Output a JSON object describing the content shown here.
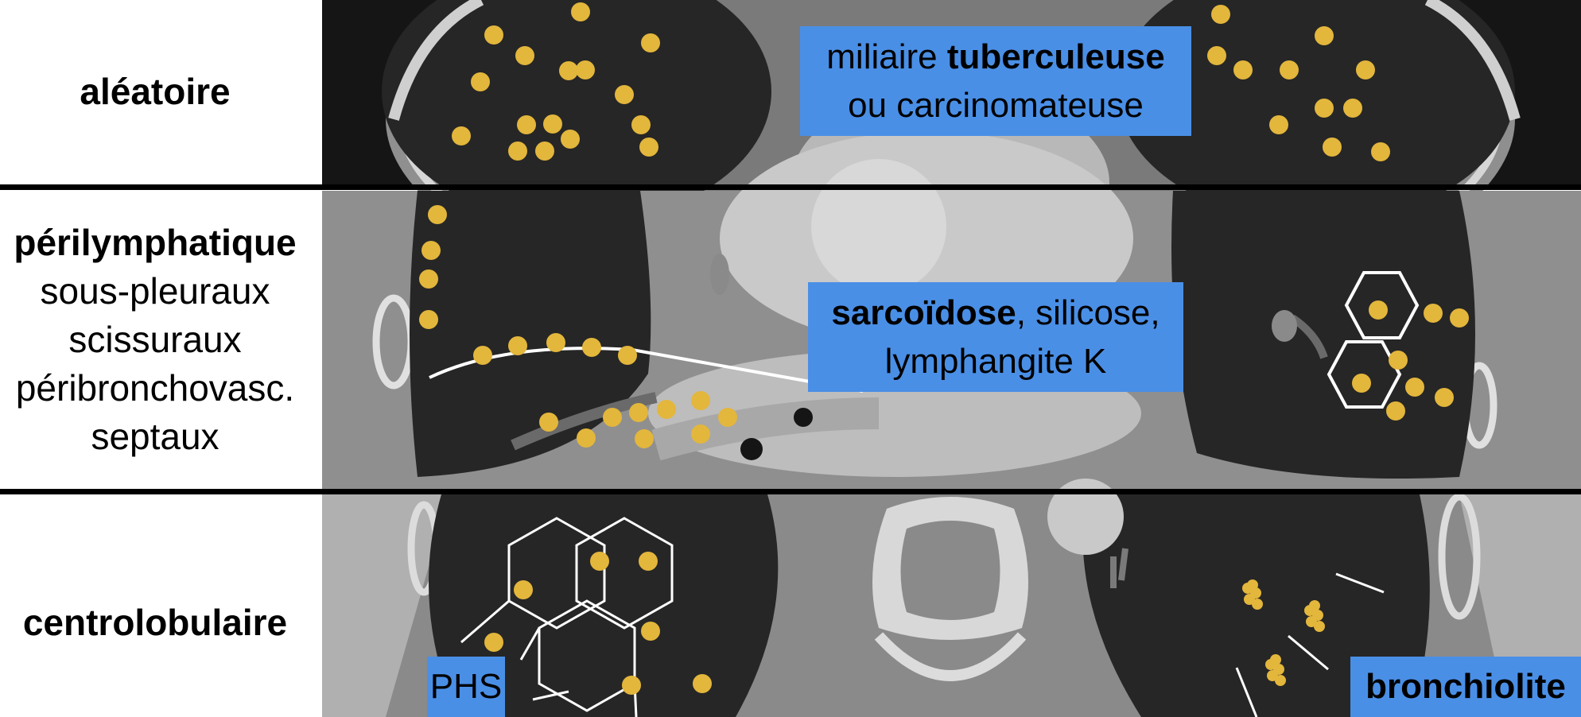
{
  "rows": [
    {
      "title": "aléatoire",
      "lines": []
    },
    {
      "title": "périlymphatique",
      "lines": [
        "sous-pleuraux",
        "scissuraux",
        "péribronchovasc.",
        "septaux"
      ]
    },
    {
      "title": "centrolobulaire",
      "lines": []
    }
  ],
  "callouts": {
    "random": {
      "line1_prefix": "miliaire ",
      "line1_bold": "tuberculeuse",
      "line2": "ou carcinomateuse"
    },
    "perilymphatic": {
      "line1_bold": "sarcoïdose",
      "line1_suffix": ", silicose,",
      "line2": "lymphangite K"
    },
    "centrilobular_left": {
      "text": "PHS"
    },
    "centrilobular_right": {
      "text": "bronchiolite"
    }
  },
  "colors": {
    "nodule": "#e3b63c",
    "callout": "#4a8fe6",
    "divider": "#000000",
    "lung": "#262626",
    "tissue": "#8f8f8f",
    "bone": "#dcdcdc"
  }
}
